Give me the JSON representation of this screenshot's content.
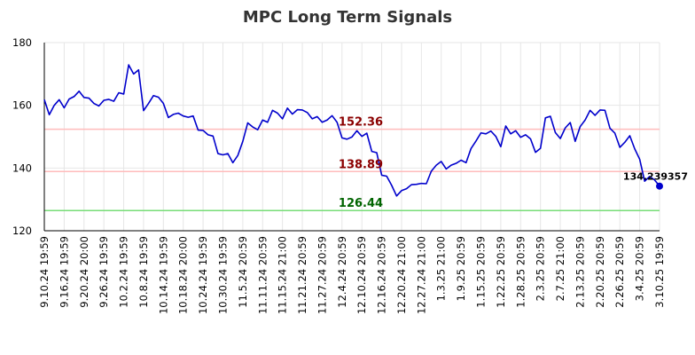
{
  "chart_data": {
    "type": "line",
    "title": "MPC Long Term Signals",
    "xlabel": "",
    "ylabel": "",
    "ylim": [
      120,
      180
    ],
    "yticks": [
      120,
      140,
      160,
      180
    ],
    "grid": true,
    "legend": "none",
    "x_tick_labels": [
      "9.10.24 19:59",
      "9.16.24 19:59",
      "9.20.24 20:00",
      "9.26.24 19:59",
      "10.2.24 19:59",
      "10.8.24 19:59",
      "10.14.24 19:59",
      "10.18.24 20:00",
      "10.24.24 19:59",
      "10.30.24 19:59",
      "11.5.24 20:59",
      "11.11.24 20:59",
      "11.15.24 21:00",
      "11.21.24 20:59",
      "11.27.24 20:59",
      "12.4.24 20:59",
      "12.10.24 20:59",
      "12.16.24 20:59",
      "12.20.24 21:00",
      "12.27.24 21:00",
      "1.3.25 21:00",
      "1.9.25 20:59",
      "1.15.25 20:59",
      "1.22.25 20:59",
      "1.28.25 20:59",
      "2.3.25 20:59",
      "2.7.25 21:00",
      "2.13.25 20:59",
      "2.20.25 20:59",
      "2.26.25 20:59",
      "3.4.25 20:59",
      "3.10.25 19:59"
    ],
    "series": [
      {
        "color": "#0000cc",
        "values": [
          161.8,
          157.0,
          160.0,
          161.8,
          159.2,
          162.0,
          162.8,
          164.5,
          162.5,
          162.3,
          160.6,
          159.8,
          161.6,
          161.9,
          161.3,
          164.0,
          163.6,
          172.9,
          170.0,
          171.3,
          158.3,
          160.6,
          163.1,
          162.6,
          160.6,
          156.1,
          157.1,
          157.5,
          156.6,
          156.2,
          156.6,
          152.1,
          152.0,
          150.6,
          150.2,
          144.6,
          144.2,
          144.6,
          141.7,
          144.0,
          148.5,
          154.4,
          153.1,
          152.2,
          155.3,
          154.6,
          158.4,
          157.5,
          155.7,
          159.1,
          157.2,
          158.6,
          158.5,
          157.7,
          155.7,
          156.4,
          154.6,
          155.3,
          156.7,
          154.6,
          149.6,
          149.2,
          149.9,
          151.9,
          150.1,
          151.1,
          145.3,
          144.9,
          137.7,
          137.4,
          134.5,
          131.1,
          132.8,
          133.4,
          134.7,
          134.8,
          135.1,
          135.0,
          139.0,
          140.9,
          142.1,
          139.7,
          140.9,
          141.5,
          142.5,
          141.7,
          146.2,
          148.6,
          151.2,
          150.9,
          151.8,
          150.1,
          146.8,
          153.4,
          150.9,
          151.9,
          149.8,
          150.6,
          149.3,
          145.0,
          146.3,
          156.0,
          156.5,
          151.3,
          149.4,
          152.8,
          154.5,
          148.5,
          153.2,
          155.3,
          158.4,
          156.8,
          158.5,
          158.4,
          152.7,
          151.1,
          146.6,
          148.2,
          150.3,
          146.1,
          142.8,
          135.8,
          137.3,
          136.2,
          134.239357
        ]
      }
    ],
    "reference_lines": [
      {
        "value": 152.36,
        "label": "152.36",
        "line_color": "#ffbbbb",
        "label_color": "#8b0000"
      },
      {
        "value": 138.89,
        "label": "138.89",
        "line_color": "#ffbbbb",
        "label_color": "#8b0000"
      },
      {
        "value": 126.44,
        "label": "126.44",
        "line_color": "#77dd77",
        "label_color": "#006400"
      }
    ],
    "last_value_label": "134.239357",
    "marker_color": "#0000cc"
  }
}
